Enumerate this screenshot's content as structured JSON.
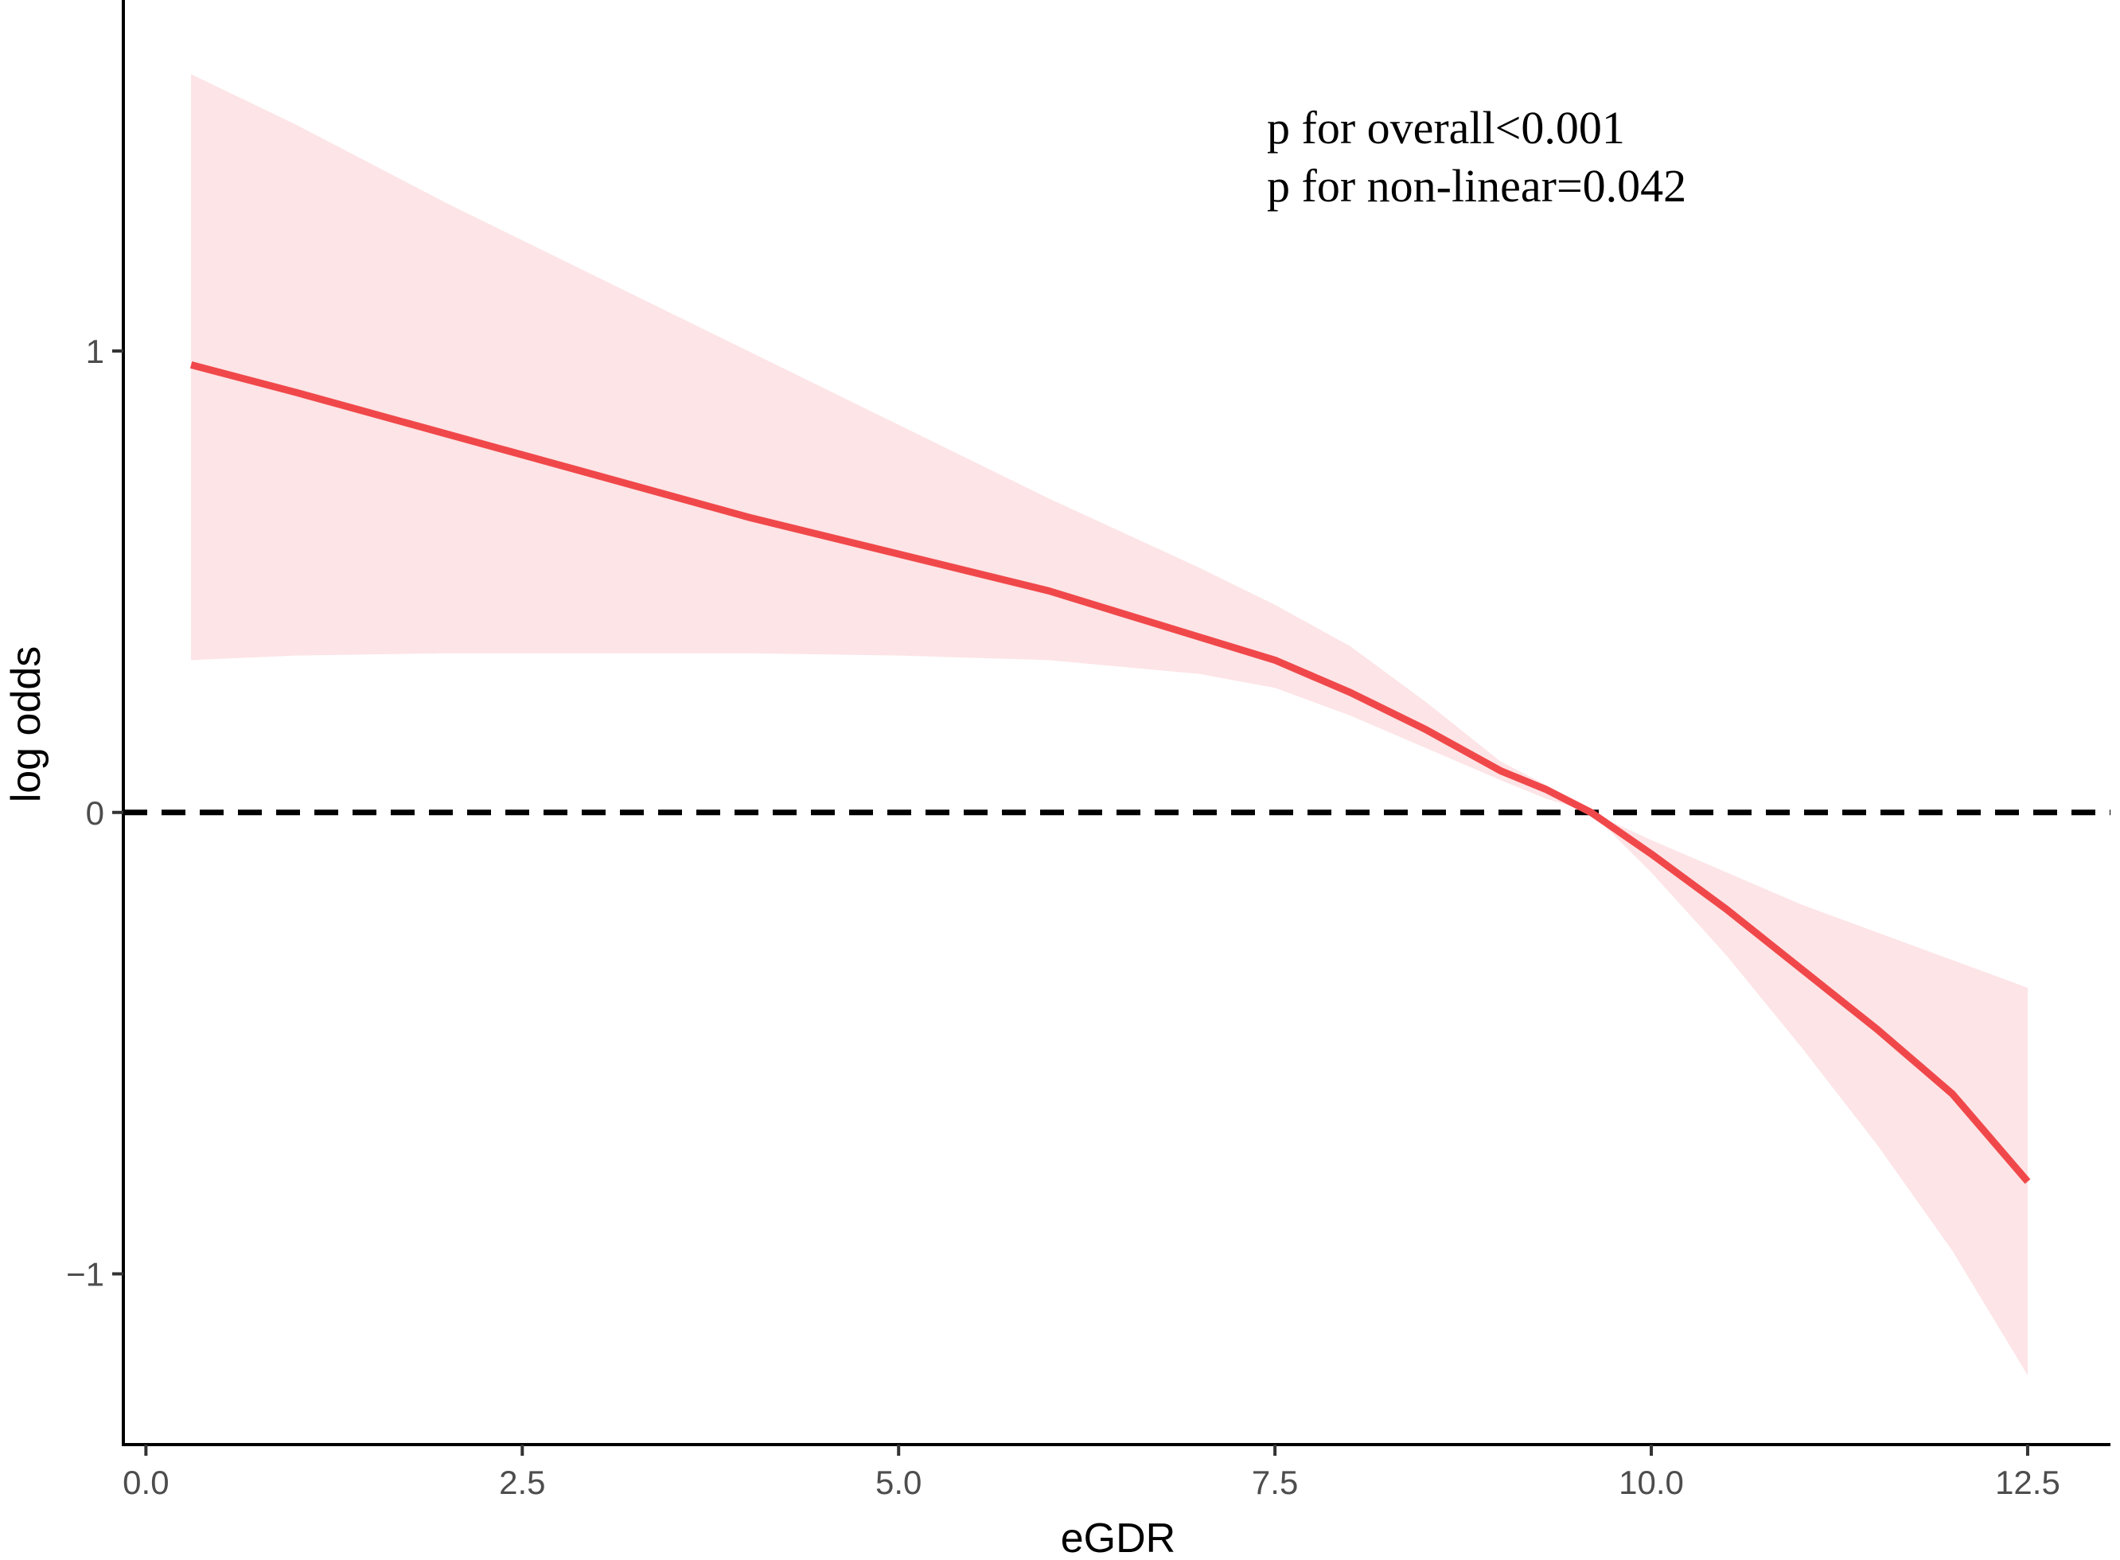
{
  "chart_data": {
    "type": "line",
    "xlabel": "eGDR",
    "ylabel": "log odds",
    "xlim": [
      -0.15,
      13.05
    ],
    "ylim": [
      -1.37,
      1.74
    ],
    "x_ticks": [
      0.0,
      2.5,
      5.0,
      7.5,
      10.0,
      12.5
    ],
    "x_tick_labels": [
      "0.0",
      "2.5",
      "5.0",
      "7.5",
      "10.0",
      "12.5"
    ],
    "y_ticks": [
      -1,
      0,
      1
    ],
    "y_tick_labels": [
      "−1",
      "0",
      "1"
    ],
    "reference_line": {
      "y": 0,
      "style": "dashed",
      "color": "#000000"
    },
    "annotations": [
      "p for overall<0.001",
      "p for non-linear=0.042"
    ],
    "grid": false,
    "legend": "none",
    "series": [
      {
        "x": [
          0.3,
          1.0,
          2.0,
          3.0,
          4.0,
          5.0,
          6.0,
          7.0,
          7.5,
          8.0,
          8.5,
          9.0,
          9.3,
          9.6,
          10.0,
          10.5,
          11.0,
          11.5,
          12.0,
          12.5
        ],
        "y": [
          0.97,
          0.91,
          0.82,
          0.73,
          0.64,
          0.56,
          0.48,
          0.38,
          0.33,
          0.26,
          0.18,
          0.09,
          0.05,
          0.0,
          -0.09,
          -0.21,
          -0.34,
          -0.47,
          -0.61,
          -0.8
        ],
        "lower": [
          0.33,
          0.34,
          0.345,
          0.345,
          0.345,
          0.34,
          0.33,
          0.3,
          0.27,
          0.21,
          0.14,
          0.07,
          0.03,
          0.0,
          -0.13,
          -0.31,
          -0.51,
          -0.72,
          -0.95,
          -1.22
        ],
        "upper": [
          1.6,
          1.49,
          1.32,
          1.16,
          1.0,
          0.84,
          0.68,
          0.53,
          0.45,
          0.36,
          0.24,
          0.11,
          0.06,
          0.0,
          -0.06,
          -0.13,
          -0.2,
          -0.26,
          -0.32,
          -0.38
        ],
        "color": "#f0484a",
        "band_color": "#fde4e6"
      }
    ]
  }
}
